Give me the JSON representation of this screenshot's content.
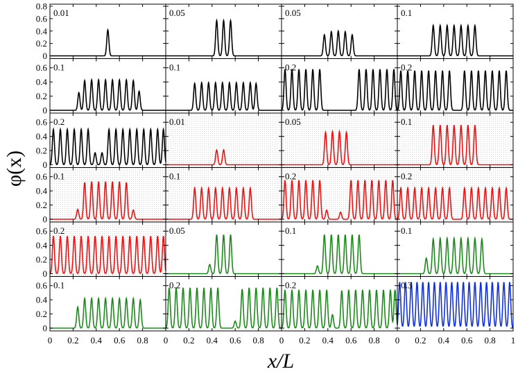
{
  "chart_data": {
    "type": "line",
    "xlabel": "x/L",
    "ylabel": "φ(x)",
    "xlim": [
      0,
      1
    ],
    "x_ticks": [
      "0",
      "0.2",
      "0.4",
      "0.6",
      "0.8",
      "1"
    ],
    "grid": "none",
    "layout": {
      "rows": 6,
      "cols": 4
    },
    "row_ylims": [
      [
        0,
        0.8
      ],
      [
        0,
        0.7
      ],
      [
        0,
        0.7
      ],
      [
        0,
        0.7
      ],
      [
        0,
        0.7
      ],
      [
        0,
        0.7
      ]
    ],
    "row_yticks": [
      [
        "0",
        "0.2",
        "0.4",
        "0.6",
        "0.8"
      ],
      [
        "0",
        "0.2",
        "0.4",
        "0.6"
      ],
      [
        "0",
        "0.2",
        "0.4",
        "0.6"
      ],
      [
        "0",
        "0.2",
        "0.4",
        "0.6"
      ],
      [
        "0",
        "0.2",
        "0.4",
        "0.6"
      ],
      [
        "0",
        "0.2",
        "0.4",
        "0.6"
      ]
    ],
    "colors": {
      "black": "#000000",
      "red": "#ee1111",
      "green": "#1b8a1b",
      "blue": "#1030e0"
    },
    "panels": [
      {
        "label": "0.01",
        "color": "black",
        "shaded": false,
        "peaks": [
          [
            0.5,
            0.42
          ]
        ]
      },
      {
        "label": "0.05",
        "color": "black",
        "shaded": false,
        "peaks": [
          [
            0.44,
            0.57
          ],
          [
            0.5,
            0.57
          ],
          [
            0.56,
            0.57
          ]
        ]
      },
      {
        "label": "0.05",
        "color": "black",
        "shaded": false,
        "peaks": [
          [
            0.37,
            0.34
          ],
          [
            0.43,
            0.39
          ],
          [
            0.49,
            0.4
          ],
          [
            0.55,
            0.39
          ],
          [
            0.61,
            0.34
          ]
        ]
      },
      {
        "label": "0.1",
        "color": "black",
        "shaded": false,
        "peaks": [
          [
            0.31,
            0.49
          ],
          [
            0.37,
            0.49
          ],
          [
            0.43,
            0.49
          ],
          [
            0.49,
            0.49
          ],
          [
            0.55,
            0.49
          ],
          [
            0.61,
            0.49
          ],
          [
            0.67,
            0.49
          ]
        ]
      },
      {
        "label": "0.1",
        "color": "black",
        "shaded": false,
        "peaks": [
          [
            0.25,
            0.25
          ],
          [
            0.3,
            0.42
          ],
          [
            0.36,
            0.43
          ],
          [
            0.42,
            0.43
          ],
          [
            0.48,
            0.43
          ],
          [
            0.54,
            0.43
          ],
          [
            0.6,
            0.43
          ],
          [
            0.66,
            0.43
          ],
          [
            0.72,
            0.42
          ],
          [
            0.77,
            0.27
          ]
        ]
      },
      {
        "label": "0.1",
        "color": "black",
        "shaded": false,
        "peaks": [
          [
            0.25,
            0.38
          ],
          [
            0.31,
            0.39
          ],
          [
            0.37,
            0.39
          ],
          [
            0.43,
            0.39
          ],
          [
            0.49,
            0.39
          ],
          [
            0.55,
            0.39
          ],
          [
            0.61,
            0.39
          ],
          [
            0.67,
            0.39
          ],
          [
            0.73,
            0.39
          ],
          [
            0.78,
            0.38
          ]
        ]
      },
      {
        "label": "0.2",
        "color": "black",
        "shaded": false,
        "peaks": [
          [
            0.03,
            0.58
          ],
          [
            0.09,
            0.58
          ],
          [
            0.15,
            0.58
          ],
          [
            0.21,
            0.58
          ],
          [
            0.27,
            0.58
          ],
          [
            0.33,
            0.58
          ],
          [
            0.67,
            0.58
          ],
          [
            0.73,
            0.58
          ],
          [
            0.79,
            0.58
          ],
          [
            0.85,
            0.58
          ],
          [
            0.91,
            0.58
          ],
          [
            0.97,
            0.58
          ]
        ]
      },
      {
        "label": "0.2",
        "color": "black",
        "shaded": false,
        "peaks": [
          [
            0.03,
            0.56
          ],
          [
            0.09,
            0.56
          ],
          [
            0.15,
            0.56
          ],
          [
            0.21,
            0.56
          ],
          [
            0.27,
            0.56
          ],
          [
            0.33,
            0.56
          ],
          [
            0.39,
            0.56
          ],
          [
            0.45,
            0.56
          ],
          [
            0.58,
            0.56
          ],
          [
            0.64,
            0.56
          ],
          [
            0.7,
            0.56
          ],
          [
            0.76,
            0.56
          ],
          [
            0.82,
            0.56
          ],
          [
            0.88,
            0.56
          ],
          [
            0.94,
            0.56
          ]
        ]
      },
      {
        "label": "0.2",
        "color": "black",
        "shaded": false,
        "peaks": [
          [
            0.03,
            0.5
          ],
          [
            0.09,
            0.5
          ],
          [
            0.15,
            0.5
          ],
          [
            0.21,
            0.5
          ],
          [
            0.27,
            0.5
          ],
          [
            0.33,
            0.5
          ],
          [
            0.39,
            0.17
          ],
          [
            0.45,
            0.17
          ],
          [
            0.51,
            0.5
          ],
          [
            0.57,
            0.5
          ],
          [
            0.63,
            0.5
          ],
          [
            0.69,
            0.5
          ],
          [
            0.75,
            0.5
          ],
          [
            0.81,
            0.5
          ],
          [
            0.87,
            0.5
          ],
          [
            0.93,
            0.5
          ],
          [
            0.98,
            0.5
          ]
        ]
      },
      {
        "label": "0.01",
        "color": "red",
        "shaded": true,
        "peaks": [
          [
            0.44,
            0.21
          ],
          [
            0.5,
            0.21
          ]
        ]
      },
      {
        "label": "0.05",
        "color": "red",
        "shaded": true,
        "peaks": [
          [
            0.38,
            0.46
          ],
          [
            0.44,
            0.47
          ],
          [
            0.5,
            0.47
          ],
          [
            0.56,
            0.46
          ]
        ]
      },
      {
        "label": "0.1",
        "color": "red",
        "shaded": true,
        "peaks": [
          [
            0.31,
            0.56
          ],
          [
            0.37,
            0.56
          ],
          [
            0.43,
            0.56
          ],
          [
            0.49,
            0.56
          ],
          [
            0.55,
            0.56
          ],
          [
            0.61,
            0.56
          ],
          [
            0.67,
            0.56
          ]
        ]
      },
      {
        "label": "0.1",
        "color": "red",
        "shaded": true,
        "peaks": [
          [
            0.24,
            0.14
          ],
          [
            0.3,
            0.52
          ],
          [
            0.36,
            0.53
          ],
          [
            0.42,
            0.53
          ],
          [
            0.48,
            0.53
          ],
          [
            0.54,
            0.53
          ],
          [
            0.6,
            0.53
          ],
          [
            0.66,
            0.52
          ],
          [
            0.72,
            0.13
          ]
        ]
      },
      {
        "label": "0.1",
        "color": "red",
        "shaded": true,
        "peaks": [
          [
            0.25,
            0.44
          ],
          [
            0.31,
            0.44
          ],
          [
            0.37,
            0.44
          ],
          [
            0.43,
            0.44
          ],
          [
            0.49,
            0.44
          ],
          [
            0.55,
            0.44
          ],
          [
            0.61,
            0.44
          ],
          [
            0.67,
            0.44
          ],
          [
            0.73,
            0.44
          ]
        ]
      },
      {
        "label": "0.2",
        "color": "red",
        "shaded": true,
        "peaks": [
          [
            0.03,
            0.55
          ],
          [
            0.09,
            0.55
          ],
          [
            0.15,
            0.55
          ],
          [
            0.21,
            0.55
          ],
          [
            0.27,
            0.55
          ],
          [
            0.33,
            0.55
          ],
          [
            0.39,
            0.13
          ],
          [
            0.51,
            0.1
          ],
          [
            0.6,
            0.55
          ],
          [
            0.66,
            0.55
          ],
          [
            0.72,
            0.55
          ],
          [
            0.78,
            0.55
          ],
          [
            0.84,
            0.55
          ],
          [
            0.9,
            0.55
          ],
          [
            0.96,
            0.55
          ]
        ]
      },
      {
        "label": "0.2",
        "color": "red",
        "shaded": true,
        "peaks": [
          [
            0.03,
            0.44
          ],
          [
            0.09,
            0.44
          ],
          [
            0.15,
            0.44
          ],
          [
            0.21,
            0.44
          ],
          [
            0.27,
            0.44
          ],
          [
            0.33,
            0.44
          ],
          [
            0.39,
            0.44
          ],
          [
            0.45,
            0.44
          ],
          [
            0.58,
            0.44
          ],
          [
            0.64,
            0.44
          ],
          [
            0.7,
            0.44
          ],
          [
            0.76,
            0.44
          ],
          [
            0.82,
            0.44
          ],
          [
            0.88,
            0.44
          ],
          [
            0.94,
            0.44
          ]
        ]
      },
      {
        "label": "0.2",
        "color": "red",
        "shaded": true,
        "peaks": [
          [
            0.03,
            0.53
          ],
          [
            0.09,
            0.53
          ],
          [
            0.15,
            0.53
          ],
          [
            0.21,
            0.53
          ],
          [
            0.27,
            0.53
          ],
          [
            0.33,
            0.53
          ],
          [
            0.39,
            0.53
          ],
          [
            0.45,
            0.53
          ],
          [
            0.51,
            0.53
          ],
          [
            0.57,
            0.53
          ],
          [
            0.63,
            0.53
          ],
          [
            0.69,
            0.53
          ],
          [
            0.75,
            0.53
          ],
          [
            0.81,
            0.53
          ],
          [
            0.87,
            0.53
          ],
          [
            0.93,
            0.53
          ],
          [
            0.98,
            0.53
          ]
        ]
      },
      {
        "label": "0.05",
        "color": "green",
        "shaded": false,
        "peaks": [
          [
            0.38,
            0.13
          ],
          [
            0.44,
            0.55
          ],
          [
            0.5,
            0.55
          ],
          [
            0.56,
            0.55
          ]
        ]
      },
      {
        "label": "0.1",
        "color": "green",
        "shaded": false,
        "peaks": [
          [
            0.31,
            0.11
          ],
          [
            0.37,
            0.55
          ],
          [
            0.43,
            0.55
          ],
          [
            0.49,
            0.55
          ],
          [
            0.55,
            0.55
          ],
          [
            0.61,
            0.55
          ],
          [
            0.67,
            0.55
          ]
        ]
      },
      {
        "label": "0.1",
        "color": "green",
        "shaded": false,
        "peaks": [
          [
            0.25,
            0.22
          ],
          [
            0.31,
            0.49
          ],
          [
            0.37,
            0.5
          ],
          [
            0.43,
            0.5
          ],
          [
            0.49,
            0.5
          ],
          [
            0.55,
            0.5
          ],
          [
            0.61,
            0.5
          ],
          [
            0.67,
            0.5
          ],
          [
            0.73,
            0.49
          ]
        ]
      },
      {
        "label": "0.1",
        "color": "green",
        "shaded": false,
        "peaks": [
          [
            0.24,
            0.3
          ],
          [
            0.3,
            0.42
          ],
          [
            0.36,
            0.42
          ],
          [
            0.42,
            0.42
          ],
          [
            0.48,
            0.42
          ],
          [
            0.54,
            0.42
          ],
          [
            0.6,
            0.42
          ],
          [
            0.66,
            0.42
          ],
          [
            0.72,
            0.42
          ],
          [
            0.78,
            0.4
          ]
        ]
      },
      {
        "label": "0.2",
        "color": "green",
        "shaded": false,
        "peaks": [
          [
            0.03,
            0.57
          ],
          [
            0.09,
            0.57
          ],
          [
            0.15,
            0.57
          ],
          [
            0.21,
            0.57
          ],
          [
            0.27,
            0.57
          ],
          [
            0.33,
            0.57
          ],
          [
            0.39,
            0.57
          ],
          [
            0.45,
            0.57
          ],
          [
            0.6,
            0.1
          ],
          [
            0.66,
            0.55
          ],
          [
            0.72,
            0.57
          ],
          [
            0.78,
            0.57
          ],
          [
            0.84,
            0.57
          ],
          [
            0.9,
            0.57
          ],
          [
            0.96,
            0.57
          ]
        ]
      },
      {
        "label": "0.2",
        "color": "green",
        "shaded": false,
        "peaks": [
          [
            0.03,
            0.54
          ],
          [
            0.09,
            0.54
          ],
          [
            0.15,
            0.54
          ],
          [
            0.21,
            0.54
          ],
          [
            0.27,
            0.54
          ],
          [
            0.33,
            0.54
          ],
          [
            0.39,
            0.54
          ],
          [
            0.44,
            0.19
          ],
          [
            0.52,
            0.53
          ],
          [
            0.58,
            0.54
          ],
          [
            0.64,
            0.54
          ],
          [
            0.7,
            0.54
          ],
          [
            0.76,
            0.54
          ],
          [
            0.82,
            0.54
          ],
          [
            0.88,
            0.54
          ],
          [
            0.94,
            0.54
          ],
          [
            0.98,
            0.54
          ]
        ]
      },
      {
        "label": "0.3",
        "color": "blue",
        "shaded": false,
        "peaks": [
          [
            0.02,
            0.65
          ],
          [
            0.07,
            0.65
          ],
          [
            0.12,
            0.65
          ],
          [
            0.17,
            0.65
          ],
          [
            0.22,
            0.65
          ],
          [
            0.27,
            0.65
          ],
          [
            0.32,
            0.65
          ],
          [
            0.37,
            0.65
          ],
          [
            0.42,
            0.65
          ],
          [
            0.47,
            0.65
          ],
          [
            0.52,
            0.65
          ],
          [
            0.57,
            0.65
          ],
          [
            0.62,
            0.65
          ],
          [
            0.67,
            0.65
          ],
          [
            0.72,
            0.65
          ],
          [
            0.77,
            0.65
          ],
          [
            0.82,
            0.65
          ],
          [
            0.87,
            0.65
          ],
          [
            0.92,
            0.65
          ],
          [
            0.97,
            0.65
          ]
        ]
      }
    ]
  }
}
